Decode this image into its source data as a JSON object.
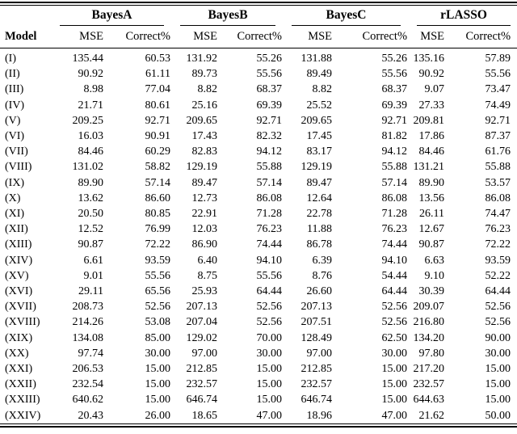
{
  "page": {
    "background_color": "#ffffff",
    "text_color": "#000000",
    "rule_color": "#000000"
  },
  "table": {
    "model_header": "Model",
    "groups": [
      "BayesA",
      "BayesB",
      "BayesC",
      "rLASSO"
    ],
    "sub_headers": [
      "MSE",
      "Correct%"
    ],
    "rows": [
      {
        "model": "(I)",
        "values": [
          "135.44",
          "60.53",
          "131.92",
          "55.26",
          "131.88",
          "55.26",
          "135.16",
          "57.89"
        ]
      },
      {
        "model": "(II)",
        "values": [
          "90.92",
          "61.11",
          "89.73",
          "55.56",
          "89.49",
          "55.56",
          "90.92",
          "55.56"
        ]
      },
      {
        "model": "(III)",
        "values": [
          "8.98",
          "77.04",
          "8.82",
          "68.37",
          "8.82",
          "68.37",
          "9.07",
          "73.47"
        ]
      },
      {
        "model": "(IV)",
        "values": [
          "21.71",
          "80.61",
          "25.16",
          "69.39",
          "25.52",
          "69.39",
          "27.33",
          "74.49"
        ]
      },
      {
        "model": "(V)",
        "values": [
          "209.25",
          "92.71",
          "209.65",
          "92.71",
          "209.65",
          "92.71",
          "209.81",
          "92.71"
        ]
      },
      {
        "model": "(VI)",
        "values": [
          "16.03",
          "90.91",
          "17.43",
          "82.32",
          "17.45",
          "81.82",
          "17.86",
          "87.37"
        ]
      },
      {
        "model": "(VII)",
        "values": [
          "84.46",
          "60.29",
          "82.83",
          "94.12",
          "83.17",
          "94.12",
          "84.46",
          "61.76"
        ]
      },
      {
        "model": "(VIII)",
        "values": [
          "131.02",
          "58.82",
          "129.19",
          "55.88",
          "129.19",
          "55.88",
          "131.21",
          "55.88"
        ]
      },
      {
        "model": "(IX)",
        "values": [
          "89.90",
          "57.14",
          "89.47",
          "57.14",
          "89.47",
          "57.14",
          "89.90",
          "53.57"
        ]
      },
      {
        "model": "(X)",
        "values": [
          "13.62",
          "86.60",
          "12.73",
          "86.08",
          "12.64",
          "86.08",
          "13.56",
          "86.08"
        ]
      },
      {
        "model": "(XI)",
        "values": [
          "20.50",
          "80.85",
          "22.91",
          "71.28",
          "22.78",
          "71.28",
          "26.11",
          "74.47"
        ]
      },
      {
        "model": "(XII)",
        "values": [
          "12.52",
          "76.99",
          "12.03",
          "76.23",
          "11.88",
          "76.23",
          "12.67",
          "76.23"
        ]
      },
      {
        "model": "(XIII)",
        "values": [
          "90.87",
          "72.22",
          "86.90",
          "74.44",
          "86.78",
          "74.44",
          "90.87",
          "72.22"
        ]
      },
      {
        "model": "(XIV)",
        "values": [
          "6.61",
          "93.59",
          "6.40",
          "94.10",
          "6.39",
          "94.10",
          "6.63",
          "93.59"
        ]
      },
      {
        "model": "(XV)",
        "values": [
          "9.01",
          "55.56",
          "8.75",
          "55.56",
          "8.76",
          "54.44",
          "9.10",
          "52.22"
        ]
      },
      {
        "model": "(XVI)",
        "values": [
          "29.11",
          "65.56",
          "25.93",
          "64.44",
          "26.60",
          "64.44",
          "30.39",
          "64.44"
        ]
      },
      {
        "model": "(XVII)",
        "values": [
          "208.73",
          "52.56",
          "207.13",
          "52.56",
          "207.13",
          "52.56",
          "209.07",
          "52.56"
        ]
      },
      {
        "model": "(XVIII)",
        "values": [
          "214.26",
          "53.08",
          "207.04",
          "52.56",
          "207.51",
          "52.56",
          "216.80",
          "52.56"
        ]
      },
      {
        "model": "(XIX)",
        "values": [
          "134.08",
          "85.00",
          "129.02",
          "70.00",
          "128.49",
          "62.50",
          "134.20",
          "90.00"
        ]
      },
      {
        "model": "(XX)",
        "values": [
          "97.74",
          "30.00",
          "97.00",
          "30.00",
          "97.00",
          "30.00",
          "97.80",
          "30.00"
        ]
      },
      {
        "model": "(XXI)",
        "values": [
          "206.53",
          "15.00",
          "212.85",
          "15.00",
          "212.85",
          "15.00",
          "217.20",
          "15.00"
        ]
      },
      {
        "model": "(XXII)",
        "values": [
          "232.54",
          "15.00",
          "232.57",
          "15.00",
          "232.57",
          "15.00",
          "232.57",
          "15.00"
        ]
      },
      {
        "model": "(XXIII)",
        "values": [
          "640.62",
          "15.00",
          "646.74",
          "15.00",
          "646.74",
          "15.00",
          "644.63",
          "15.00"
        ]
      },
      {
        "model": "(XXIV)",
        "values": [
          "20.43",
          "26.00",
          "18.65",
          "47.00",
          "18.96",
          "47.00",
          "21.62",
          "50.00"
        ]
      }
    ]
  }
}
